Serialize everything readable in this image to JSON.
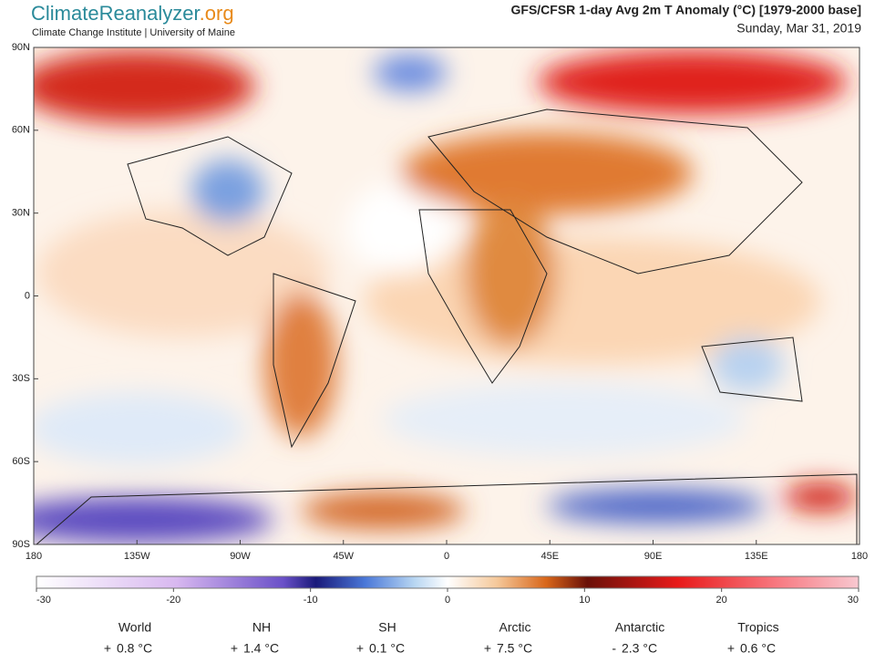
{
  "header": {
    "brand": "ClimateReanalyzer",
    "brand_suffix": ".org",
    "subtitle": "Climate Change Institute | University of Maine",
    "title": "GFS/CFSR 1-day Avg 2m T Anomaly (°C) [1979-2000 base]",
    "date": "Sunday, Mar 31, 2019"
  },
  "map": {
    "lat_labels": [
      "90N",
      "60N",
      "30N",
      "0",
      "30S",
      "60S",
      "90S"
    ],
    "lon_labels": [
      "180",
      "135W",
      "90W",
      "45W",
      "0",
      "45E",
      "90E",
      "135E",
      "180"
    ]
  },
  "colorbar": {
    "range": [
      -30,
      30
    ],
    "ticks": [
      -30,
      -20,
      -10,
      0,
      10,
      20,
      30
    ]
  },
  "stats": [
    {
      "label": "World",
      "sign": "+",
      "value": "0.8 °C"
    },
    {
      "label": "NH",
      "sign": "+",
      "value": "1.4 °C"
    },
    {
      "label": "SH",
      "sign": "+",
      "value": "0.1 °C"
    },
    {
      "label": "Arctic",
      "sign": "+",
      "value": "7.5 °C"
    },
    {
      "label": "Antarctic",
      "sign": "-",
      "value": "2.3 °C"
    },
    {
      "label": "Tropics",
      "sign": "+",
      "value": "0.6 °C"
    }
  ]
}
